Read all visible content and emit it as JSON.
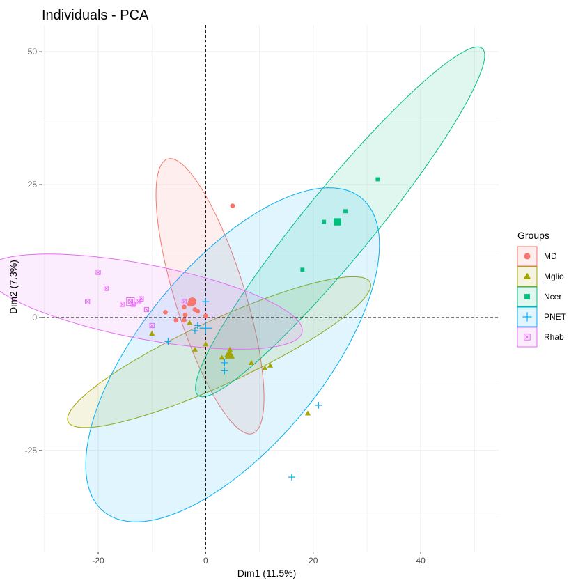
{
  "chart_data": {
    "type": "scatter",
    "title": "Individuals - PCA",
    "xlabel": "Dim1 (11.5%)",
    "ylabel": "Dim2 (7.3%)",
    "xlim": [
      -30.5,
      54.5
    ],
    "ylim": [
      -44,
      55
    ],
    "xticks": [
      -20,
      0,
      20,
      40
    ],
    "yticks": [
      -25,
      0,
      25,
      50
    ],
    "xtick_labels": [
      "-20",
      "0",
      "20",
      "40"
    ],
    "ytick_labels": [
      "-25",
      "0",
      "25",
      "50"
    ],
    "grid": true,
    "reference_lines": {
      "x": 0,
      "y": 0,
      "style": "dashed"
    },
    "legend": {
      "title": "Groups",
      "placement": "right"
    },
    "series": [
      {
        "name": "MD",
        "color": "#F8766D",
        "shape": "circle",
        "points": [
          [
            5,
            21
          ],
          [
            -2.5,
            3
          ],
          [
            -4,
            2
          ],
          [
            -3,
            2.5
          ],
          [
            -3.8,
            0.5
          ],
          [
            -2,
            1.5
          ],
          [
            -1.5,
            1.2
          ],
          [
            -7.5,
            1
          ],
          [
            -5.5,
            -0.5
          ],
          [
            -4,
            -0.5
          ],
          [
            0,
            0.3
          ]
        ],
        "centroid": [
          -2.5,
          3
        ],
        "ellipse": {
          "cx": 0.8,
          "cy": 4,
          "rx": 27,
          "ry": 6.5,
          "angle_deg": -73
        }
      },
      {
        "name": "Mglio",
        "color": "#A3A500",
        "shape": "triangle",
        "points": [
          [
            -10,
            -3
          ],
          [
            -3,
            -1
          ],
          [
            -2,
            -6
          ],
          [
            0,
            -5
          ],
          [
            3,
            -7.5
          ],
          [
            4,
            -7
          ],
          [
            4.5,
            -6
          ],
          [
            8.5,
            -8.5
          ],
          [
            11,
            -9.5
          ],
          [
            12,
            -9
          ],
          [
            19,
            -18
          ]
        ],
        "centroid": [
          4.5,
          -7
        ],
        "ellipse": {
          "cx": 2.5,
          "cy": -6.5,
          "rx": 31,
          "ry": 6,
          "angle_deg": 25
        }
      },
      {
        "name": "Ncer",
        "color": "#00BF7D",
        "shape": "square",
        "points": [
          [
            18,
            9
          ],
          [
            22,
            18
          ],
          [
            26,
            20
          ],
          [
            32,
            26
          ]
        ],
        "centroid": [
          24.5,
          18
        ],
        "ellipse": {
          "cx": 25,
          "cy": 18,
          "rx": 42,
          "ry": 6.5,
          "angle_deg": 51
        }
      },
      {
        "name": "PNET",
        "color": "#00B0F6",
        "shape": "plus",
        "points": [
          [
            0,
            3
          ],
          [
            -1.5,
            -1.5
          ],
          [
            -2,
            -2.5
          ],
          [
            -7,
            -4.5
          ],
          [
            3.5,
            -8.5
          ],
          [
            3.5,
            -10
          ],
          [
            21,
            -16.5
          ],
          [
            16,
            -30
          ]
        ],
        "centroid": [
          0,
          -2
        ],
        "ellipse": {
          "cx": 5,
          "cy": -7,
          "rx": 38,
          "ry": 17,
          "angle_deg": 51
        }
      },
      {
        "name": "Rhab",
        "color": "#E76BF3",
        "shape": "box-x",
        "points": [
          [
            -20,
            8.5
          ],
          [
            -18.5,
            5.5
          ],
          [
            -22,
            3
          ],
          [
            -15.5,
            2.5
          ],
          [
            -14,
            3
          ],
          [
            -13.5,
            2.5
          ],
          [
            -12.5,
            3
          ],
          [
            -12,
            3.5
          ],
          [
            -11,
            1.5
          ],
          [
            -10,
            -1.5
          ],
          [
            -4,
            3
          ]
        ],
        "centroid": [
          -14,
          3
        ],
        "ellipse": {
          "cx": -11.5,
          "cy": 3,
          "rx": 30,
          "ry": 7,
          "angle_deg": -11
        }
      }
    ]
  }
}
